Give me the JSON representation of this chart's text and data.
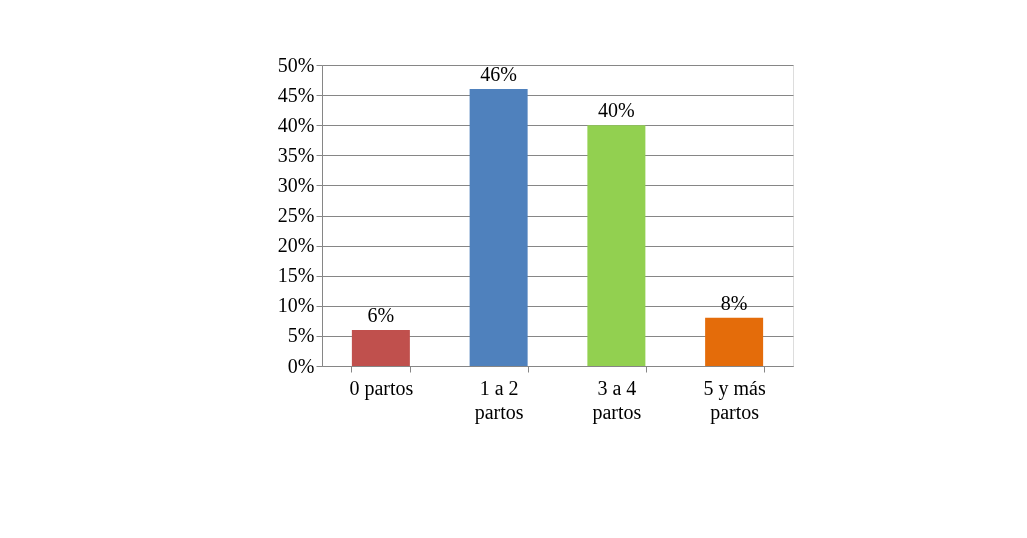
{
  "chart_data": {
    "type": "bar",
    "categories": [
      "0 partos",
      "1 a 2 partos",
      "3 a 4 partos",
      "5 y más partos"
    ],
    "values": [
      6,
      46,
      40,
      8
    ],
    "colors": [
      "#c0504d",
      "#4f81bd",
      "#92d050",
      "#e46c0a"
    ],
    "value_labels": [
      "6%",
      "46%",
      "40%",
      "8%"
    ],
    "ylim": [
      0,
      50
    ],
    "yticks": [
      {
        "value": 0,
        "label": "0%"
      },
      {
        "value": 5,
        "label": "5%"
      },
      {
        "value": 10,
        "label": "10%"
      },
      {
        "value": 15,
        "label": "15%"
      },
      {
        "value": 20,
        "label": "20%"
      },
      {
        "value": 25,
        "label": "25%"
      },
      {
        "value": 30,
        "label": "30%"
      },
      {
        "value": 35,
        "label": "35%"
      },
      {
        "value": 40,
        "label": "40%"
      },
      {
        "value": 45,
        "label": "45%"
      },
      {
        "value": 50,
        "label": "50%"
      }
    ],
    "grid": "y",
    "legend": false
  }
}
